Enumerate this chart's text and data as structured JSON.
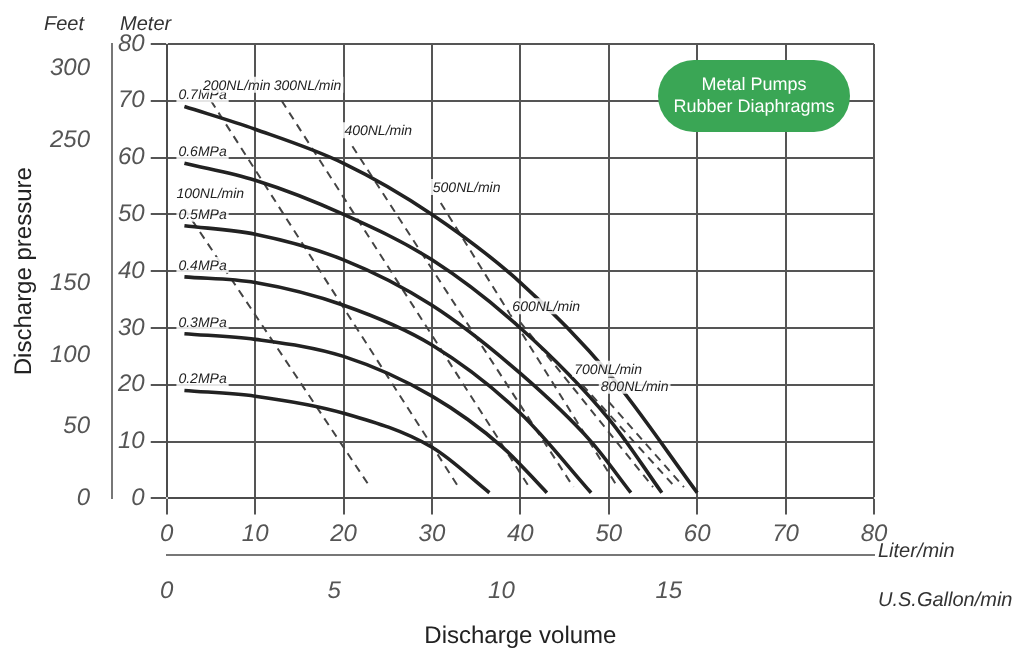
{
  "chart_data": {
    "type": "line",
    "y2label": "Discharge pressure",
    "xlabel": "Discharge volume",
    "xlim": [
      0,
      80
    ],
    "xticks": [
      0,
      10,
      20,
      30,
      40,
      50,
      60,
      70,
      80
    ],
    "ylim": [
      0,
      80
    ],
    "yticks": [
      0,
      10,
      20,
      30,
      40,
      50,
      60,
      70,
      80
    ],
    "y2lim": [
      0,
      317
    ],
    "y2ticks": [
      0,
      50,
      100,
      150,
      250,
      300
    ],
    "x2lim": [
      0,
      21.13
    ],
    "x2ticks": [
      0,
      5,
      10,
      15
    ],
    "grid": true,
    "legend": false,
    "marker": "none",
    "annotations": [
      "Meter",
      "Feet",
      "Liter/min",
      "U.S.Gallon/min",
      "Metal Pumps\nRubber Diaphragms"
    ],
    "series": [
      {
        "name": "0.7MPa",
        "color": "#222222",
        "line_style": "solid",
        "x": [
          2,
          10,
          20,
          30,
          40,
          50,
          60
        ],
        "values": [
          69,
          65,
          59,
          50,
          38,
          22,
          1
        ]
      },
      {
        "name": "0.6MPa",
        "color": "#222222",
        "line_style": "solid",
        "x": [
          2,
          10,
          20,
          30,
          40,
          50,
          56
        ],
        "values": [
          59,
          56,
          50,
          42,
          30,
          14,
          1
        ]
      },
      {
        "name": "0.5MPa",
        "color": "#222222",
        "line_style": "solid",
        "x": [
          2,
          10,
          20,
          30,
          40,
          48,
          52.5
        ],
        "values": [
          48,
          46.5,
          42,
          34,
          22,
          10,
          1
        ]
      },
      {
        "name": "0.4MPa",
        "color": "#222222",
        "line_style": "solid",
        "x": [
          2,
          10,
          20,
          30,
          40,
          48
        ],
        "values": [
          39,
          38,
          34,
          27,
          15,
          1
        ]
      },
      {
        "name": "0.3MPa",
        "color": "#222222",
        "line_style": "solid",
        "x": [
          2,
          10,
          20,
          30,
          38,
          43
        ],
        "values": [
          29,
          28,
          25,
          18,
          9,
          1
        ]
      },
      {
        "name": "0.2MPa",
        "color": "#222222",
        "line_style": "solid",
        "x": [
          2,
          10,
          20,
          30,
          36.5
        ],
        "values": [
          19,
          18,
          15,
          9,
          1
        ]
      },
      {
        "name": "100NL/min",
        "color": "#444444",
        "line_style": "dashed",
        "x": [
          2,
          23
        ],
        "values": [
          51,
          2
        ]
      },
      {
        "name": "200NL/min",
        "color": "#444444",
        "line_style": "dashed",
        "x": [
          5,
          33
        ],
        "values": [
          70,
          2
        ]
      },
      {
        "name": "300NL/min",
        "color": "#444444",
        "line_style": "dashed",
        "x": [
          13,
          41
        ],
        "values": [
          70,
          2
        ]
      },
      {
        "name": "400NL/min",
        "color": "#444444",
        "line_style": "dashed",
        "x": [
          21,
          46
        ],
        "values": [
          62,
          2
        ]
      },
      {
        "name": "500NL/min",
        "color": "#444444",
        "line_style": "dashed",
        "x": [
          31,
          51
        ],
        "values": [
          52,
          2
        ]
      },
      {
        "name": "600NL/min",
        "color": "#444444",
        "line_style": "dashed",
        "x": [
          40,
          55
        ],
        "values": [
          31,
          2
        ]
      },
      {
        "name": "700NL/min",
        "color": "#444444",
        "line_style": "dashed",
        "x": [
          47,
          57.5
        ],
        "values": [
          20,
          2
        ]
      },
      {
        "name": "800NL/min",
        "color": "#444444",
        "line_style": "dashed",
        "x": [
          50,
          58.5
        ],
        "values": [
          17,
          2
        ]
      }
    ]
  }
}
